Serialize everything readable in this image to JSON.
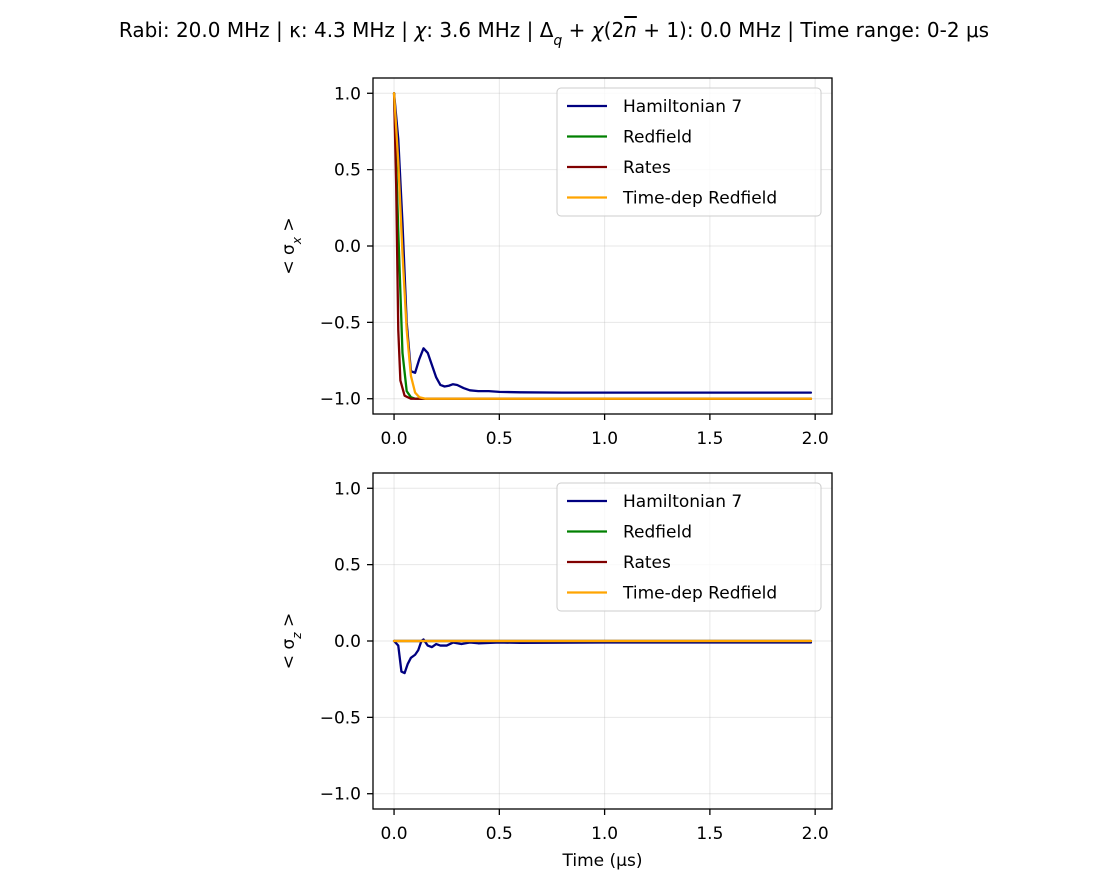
{
  "figure": {
    "title_parts": [
      {
        "t": "Rabi: 20.0 MHz | κ: 4.3 MHz | "
      },
      {
        "t": "χ",
        "it": true
      },
      {
        "t": ": 3.6 MHz | Δ"
      },
      {
        "t": "q",
        "it": true,
        "sub": true
      },
      {
        "t": " + "
      },
      {
        "t": "χ",
        "it": true
      },
      {
        "t": "(2"
      },
      {
        "t": "n",
        "it": true,
        "over": true
      },
      {
        "t": " + 1): 0.0 MHz | Time range: 0-2 μs"
      }
    ]
  },
  "chart_data": [
    {
      "type": "line",
      "xlabel": "",
      "ylabel_parts": [
        {
          "t": "< σ"
        },
        {
          "t": "x",
          "it": true,
          "sub": true
        },
        {
          "t": " >"
        }
      ],
      "xlim": [
        -0.1,
        2.08
      ],
      "ylim": [
        -1.1,
        1.1
      ],
      "xticks": [
        0.0,
        0.5,
        1.0,
        1.5,
        2.0
      ],
      "xtick_labels": [
        "0.0",
        "0.5",
        "1.0",
        "1.5",
        "2.0"
      ],
      "yticks": [
        1.0,
        0.5,
        0.0,
        -0.5,
        -1.0
      ],
      "ytick_labels": [
        "1.0",
        "0.5",
        "0.0",
        "−0.5",
        "−1.0"
      ],
      "grid": true,
      "legend_position": "upper right",
      "series": [
        {
          "name": "Hamiltonian 7",
          "color": "#000080",
          "points": [
            [
              0,
              1.0
            ],
            [
              0.02,
              0.7
            ],
            [
              0.04,
              0.15
            ],
            [
              0.06,
              -0.5
            ],
            [
              0.08,
              -0.82
            ],
            [
              0.1,
              -0.83
            ],
            [
              0.12,
              -0.74
            ],
            [
              0.14,
              -0.67
            ],
            [
              0.16,
              -0.7
            ],
            [
              0.18,
              -0.78
            ],
            [
              0.2,
              -0.86
            ],
            [
              0.22,
              -0.91
            ],
            [
              0.24,
              -0.92
            ],
            [
              0.26,
              -0.915
            ],
            [
              0.28,
              -0.905
            ],
            [
              0.3,
              -0.91
            ],
            [
              0.33,
              -0.93
            ],
            [
              0.36,
              -0.945
            ],
            [
              0.4,
              -0.95
            ],
            [
              0.45,
              -0.95
            ],
            [
              0.5,
              -0.955
            ],
            [
              0.6,
              -0.958
            ],
            [
              0.8,
              -0.96
            ],
            [
              1.0,
              -0.96
            ],
            [
              1.5,
              -0.96
            ],
            [
              1.98,
              -0.96
            ]
          ]
        },
        {
          "name": "Redfield",
          "color": "#008000",
          "points": [
            [
              0,
              1.0
            ],
            [
              0.02,
              0.1
            ],
            [
              0.04,
              -0.7
            ],
            [
              0.06,
              -0.95
            ],
            [
              0.08,
              -0.99
            ],
            [
              0.1,
              -1.0
            ],
            [
              0.5,
              -1.0
            ],
            [
              1.0,
              -1.0
            ],
            [
              1.98,
              -1.0
            ]
          ]
        },
        {
          "name": "Rates",
          "color": "#800000",
          "points": [
            [
              0,
              1.0
            ],
            [
              0.01,
              0.4
            ],
            [
              0.02,
              -0.55
            ],
            [
              0.03,
              -0.88
            ],
            [
              0.05,
              -0.98
            ],
            [
              0.08,
              -1.0
            ],
            [
              0.5,
              -1.0
            ],
            [
              1.0,
              -1.0
            ],
            [
              1.98,
              -1.0
            ]
          ]
        },
        {
          "name": "Time-dep Redfield",
          "color": "#ffa500",
          "points": [
            [
              0,
              1.0
            ],
            [
              0.02,
              0.55
            ],
            [
              0.04,
              -0.05
            ],
            [
              0.06,
              -0.55
            ],
            [
              0.08,
              -0.85
            ],
            [
              0.1,
              -0.96
            ],
            [
              0.12,
              -0.99
            ],
            [
              0.15,
              -1.0
            ],
            [
              0.5,
              -1.0
            ],
            [
              1.0,
              -1.0
            ],
            [
              1.98,
              -1.0
            ]
          ]
        }
      ]
    },
    {
      "type": "line",
      "xlabel": "Time (μs)",
      "ylabel_parts": [
        {
          "t": "< σ"
        },
        {
          "t": "z",
          "it": true,
          "sub": true
        },
        {
          "t": " >"
        }
      ],
      "xlim": [
        -0.1,
        2.08
      ],
      "ylim": [
        -1.1,
        1.1
      ],
      "xticks": [
        0.0,
        0.5,
        1.0,
        1.5,
        2.0
      ],
      "xtick_labels": [
        "0.0",
        "0.5",
        "1.0",
        "1.5",
        "2.0"
      ],
      "yticks": [
        1.0,
        0.5,
        0.0,
        -0.5,
        -1.0
      ],
      "ytick_labels": [
        "1.0",
        "0.5",
        "0.0",
        "−0.5",
        "−1.0"
      ],
      "grid": true,
      "legend_position": "upper right",
      "series": [
        {
          "name": "Hamiltonian 7",
          "color": "#000080",
          "points": [
            [
              0,
              0.0
            ],
            [
              0.02,
              -0.03
            ],
            [
              0.035,
              -0.2
            ],
            [
              0.05,
              -0.21
            ],
            [
              0.065,
              -0.15
            ],
            [
              0.08,
              -0.11
            ],
            [
              0.1,
              -0.09
            ],
            [
              0.115,
              -0.06
            ],
            [
              0.13,
              0.0
            ],
            [
              0.14,
              0.01
            ],
            [
              0.16,
              -0.03
            ],
            [
              0.18,
              -0.04
            ],
            [
              0.2,
              -0.02
            ],
            [
              0.22,
              -0.03
            ],
            [
              0.25,
              -0.03
            ],
            [
              0.28,
              -0.01
            ],
            [
              0.32,
              -0.02
            ],
            [
              0.36,
              -0.01
            ],
            [
              0.4,
              -0.015
            ],
            [
              0.5,
              -0.01
            ],
            [
              0.6,
              -0.012
            ],
            [
              1.0,
              -0.01
            ],
            [
              1.5,
              -0.01
            ],
            [
              1.98,
              -0.01
            ]
          ]
        },
        {
          "name": "Redfield",
          "color": "#008000",
          "points": [
            [
              0,
              0.0
            ],
            [
              0.5,
              0.0
            ],
            [
              1.0,
              0.0
            ],
            [
              1.98,
              0.0
            ]
          ]
        },
        {
          "name": "Rates",
          "color": "#800000",
          "points": [
            [
              0,
              0.0
            ],
            [
              0.5,
              0.0
            ],
            [
              1.0,
              0.0
            ],
            [
              1.98,
              0.0
            ]
          ]
        },
        {
          "name": "Time-dep Redfield",
          "color": "#ffa500",
          "points": [
            [
              0,
              0.0
            ],
            [
              0.5,
              0.0
            ],
            [
              1.0,
              0.0
            ],
            [
              1.98,
              0.0
            ]
          ]
        }
      ]
    }
  ]
}
